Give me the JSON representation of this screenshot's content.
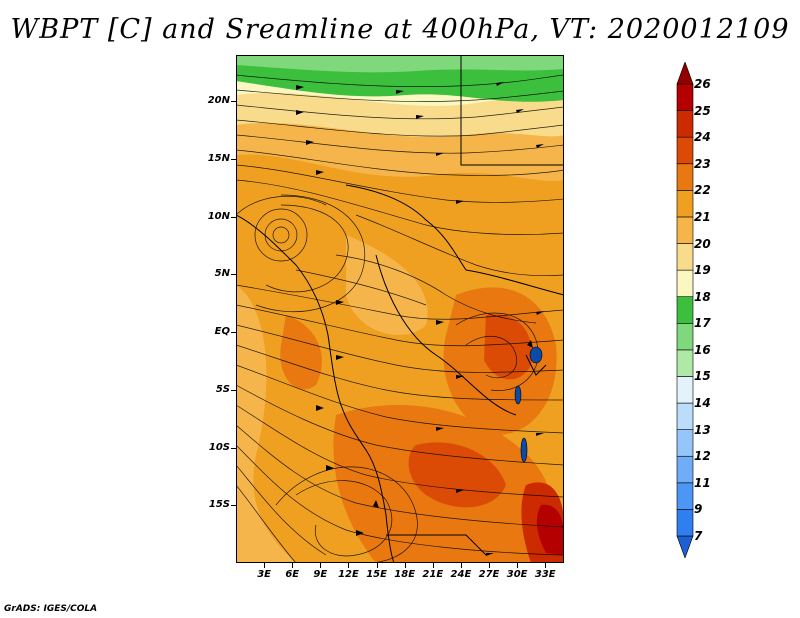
{
  "title": "WBPT [C] and Sreamline at 400hPa, VT: 2020012109",
  "credit": "GrADS: IGES/COLA",
  "map": {
    "projection": "lat-lon",
    "lon_range": [
      0,
      35
    ],
    "lat_range": [
      -20,
      24
    ],
    "lat_labels": [
      {
        "label": "20N",
        "lat": 20
      },
      {
        "label": "15N",
        "lat": 15
      },
      {
        "label": "10N",
        "lat": 10
      },
      {
        "label": "5N",
        "lat": 5
      },
      {
        "label": "EQ",
        "lat": 0
      },
      {
        "label": "5S",
        "lat": -5
      },
      {
        "label": "10S",
        "lat": -10
      },
      {
        "label": "15S",
        "lat": -15
      }
    ],
    "lon_labels": [
      {
        "label": "3E",
        "lon": 3
      },
      {
        "label": "6E",
        "lon": 6
      },
      {
        "label": "9E",
        "lon": 9
      },
      {
        "label": "12E",
        "lon": 12
      },
      {
        "label": "15E",
        "lon": 15
      },
      {
        "label": "18E",
        "lon": 18
      },
      {
        "label": "21E",
        "lon": 21
      },
      {
        "label": "24E",
        "lon": 24
      },
      {
        "label": "27E",
        "lon": 27
      },
      {
        "label": "30E",
        "lon": 30
      },
      {
        "label": "33E",
        "lon": 33
      }
    ]
  },
  "colorbar": {
    "levels": [
      "7",
      "9",
      "11",
      "12",
      "13",
      "14",
      "15",
      "16",
      "17",
      "18",
      "19",
      "20",
      "21",
      "22",
      "23",
      "24",
      "25",
      "26"
    ],
    "colors": [
      "#1f5fd6",
      "#2f7ff0",
      "#4c96f6",
      "#6fadf8",
      "#94c6fb",
      "#bcdcfc",
      "#e2f3fb",
      "#aeeaa6",
      "#7fd87b",
      "#3cbf3c",
      "#fbf7c0",
      "#f8dc8c",
      "#f5b54a",
      "#f0a020",
      "#e8780f",
      "#dc4b05",
      "#cc2a00",
      "#b40000",
      "#920000"
    ]
  }
}
